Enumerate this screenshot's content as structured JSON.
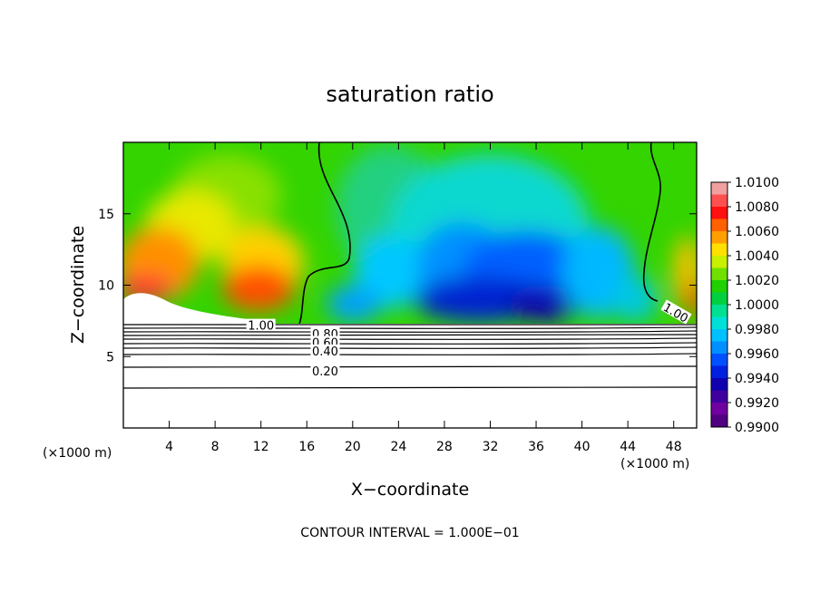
{
  "chart_data": {
    "type": "heatmap",
    "title": "saturation ratio",
    "xlabel": "X−coordinate",
    "ylabel": "Z−coordinate",
    "x_unit_label": "(×1000 m)",
    "z_unit_label": "(×1000 m)",
    "xlim": [
      0,
      50
    ],
    "ylim": [
      0,
      20
    ],
    "x_ticks": [
      4,
      8,
      12,
      16,
      20,
      24,
      28,
      32,
      36,
      40,
      44,
      48
    ],
    "y_ticks": [
      5,
      10,
      15
    ],
    "colorbar": {
      "min": 0.99,
      "max": 1.01,
      "labels": [
        "1.0100",
        "1.0080",
        "1.0060",
        "1.0040",
        "1.0020",
        "1.0000",
        "0.9980",
        "0.9960",
        "0.9940",
        "0.9920",
        "0.9900"
      ]
    },
    "contour_labels": [
      {
        "text": "1.00",
        "x": 12.0,
        "z": 7.2
      },
      {
        "text": "1.00",
        "x": 48.2,
        "z": 8.1
      },
      {
        "text": "0.80",
        "x": 17.6,
        "z": 6.6
      },
      {
        "text": "0.60",
        "x": 17.6,
        "z": 6.0
      },
      {
        "text": "0.40",
        "x": 17.6,
        "z": 5.4
      },
      {
        "text": "0.20",
        "x": 17.6,
        "z": 4.0
      }
    ],
    "footer": "CONTOUR INTERVAL = 1.000E−01"
  }
}
